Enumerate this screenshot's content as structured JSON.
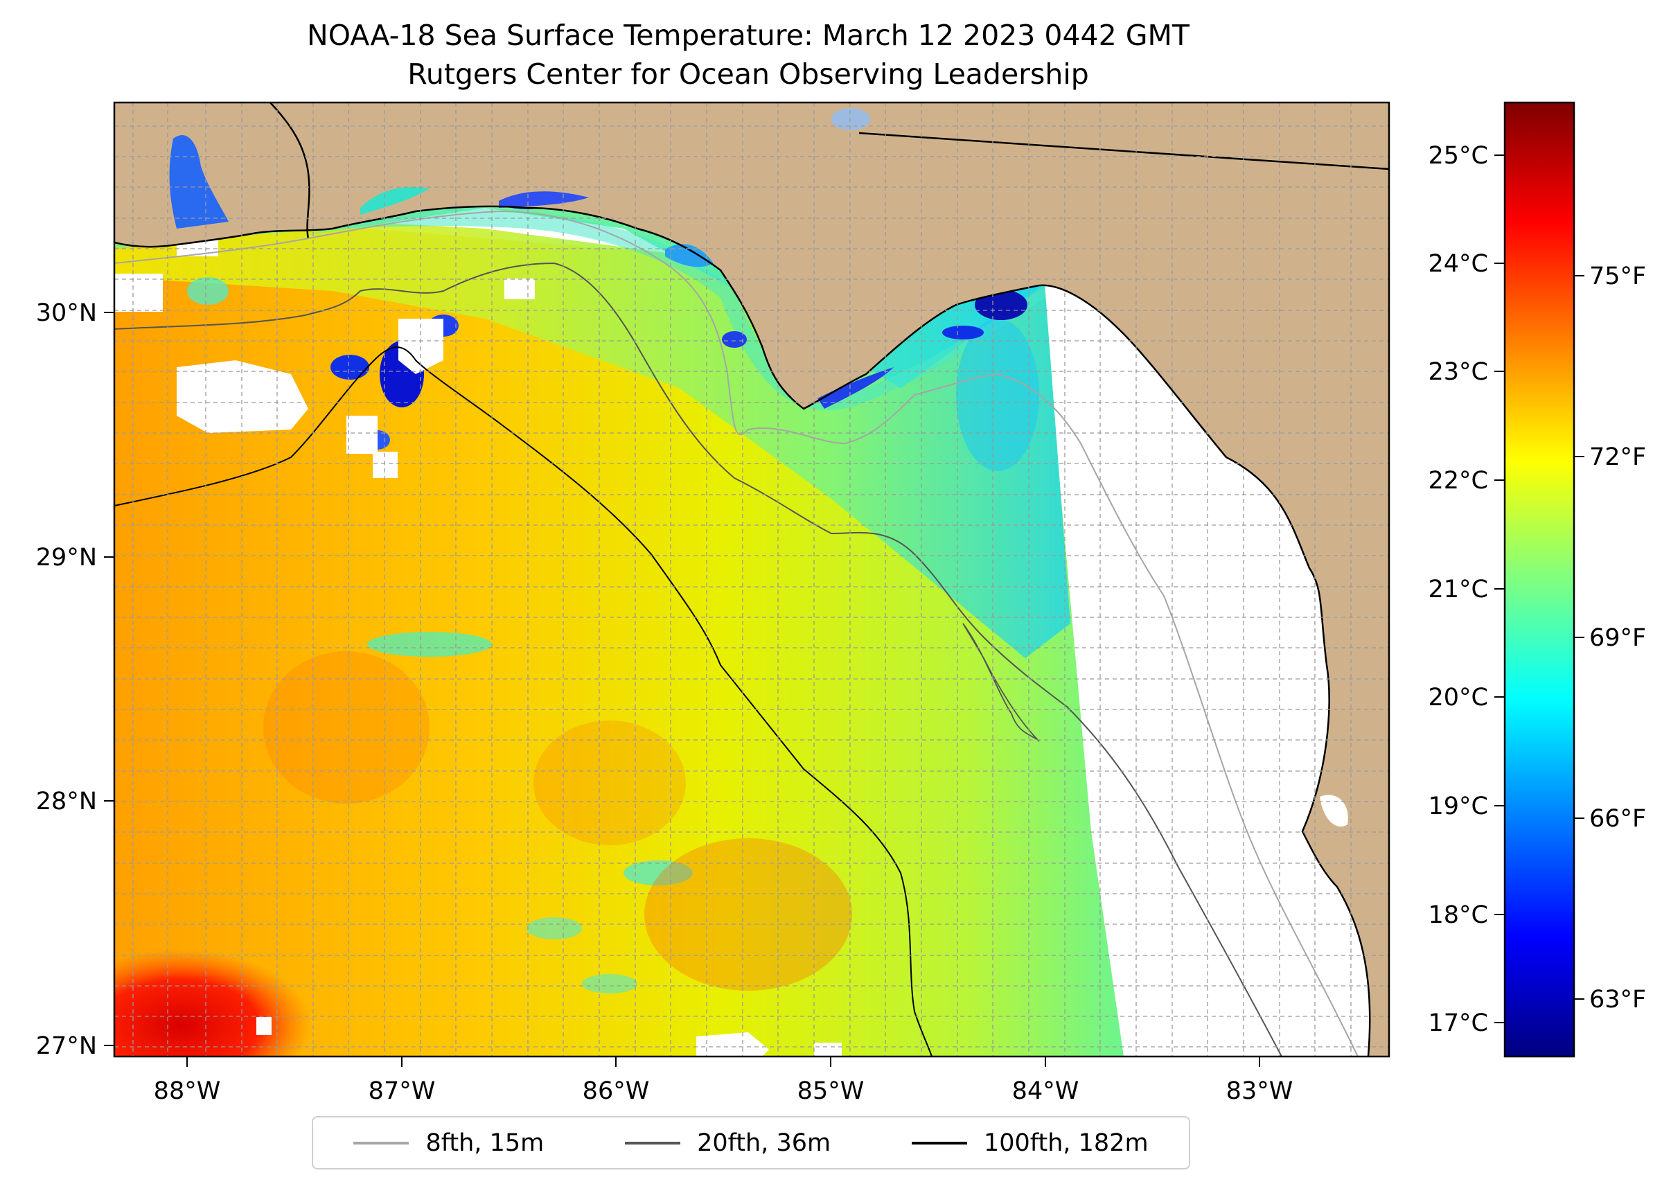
{
  "title": {
    "line1": "NOAA-18 Sea Surface Temperature: March 12 2023 0442 GMT",
    "line2": "Rutgers Center for Ocean Observing Leadership"
  },
  "map": {
    "lon_ticks": [
      "88°W",
      "87°W",
      "86°W",
      "85°W",
      "84°W",
      "83°W"
    ],
    "lat_ticks": [
      "30°N",
      "29°N",
      "28°N",
      "27°N"
    ],
    "lon_range": [
      -88.33,
      -82.42
    ],
    "lat_range": [
      26.94,
      30.86
    ]
  },
  "colorbar": {
    "celsius_ticks": [
      "25°C",
      "24°C",
      "23°C",
      "22°C",
      "21°C",
      "20°C",
      "19°C",
      "18°C",
      "17°C"
    ],
    "fahrenheit_ticks": [
      "75°F",
      "72°F",
      "69°F",
      "66°F",
      "63°F"
    ],
    "colormap": "jet",
    "colors": [
      "#00007f",
      "#0000ff",
      "#007fff",
      "#00ffff",
      "#7fff7f",
      "#ffff00",
      "#ff7f00",
      "#ff0000",
      "#7f0000"
    ]
  },
  "legend": {
    "items": [
      {
        "label": "8fth, 15m",
        "color": "#a6a6a6"
      },
      {
        "label": "20fth, 36m",
        "color": "#555555"
      },
      {
        "label": "100fth, 182m",
        "color": "#000000"
      }
    ]
  },
  "colors": {
    "land": "#cfb28c",
    "lake": "#9dbbe0"
  }
}
